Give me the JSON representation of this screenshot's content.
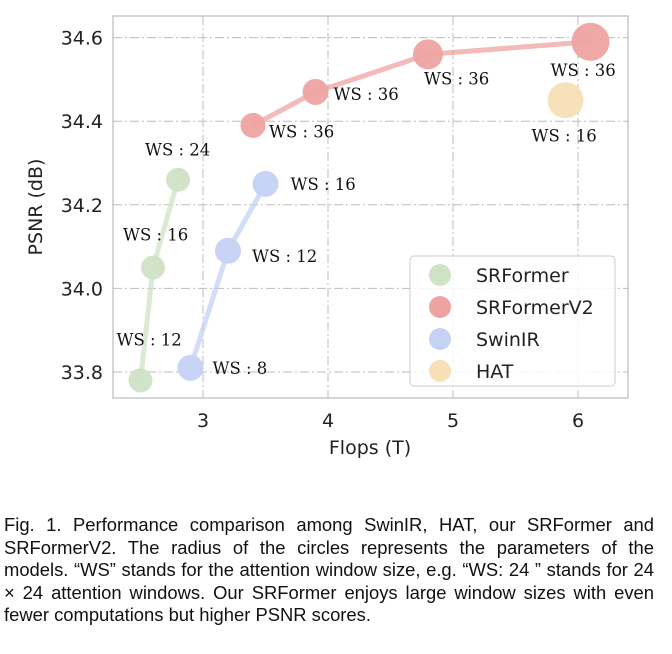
{
  "chart_data": {
    "type": "scatter",
    "xlabel": "Flops (T)",
    "ylabel": "PSNR (dB)",
    "xlim": [
      2.3,
      6.4
    ],
    "ylim": [
      33.74,
      34.65
    ],
    "xticks": [
      3,
      4,
      5,
      6
    ],
    "yticks": [
      33.8,
      34.0,
      34.2,
      34.4,
      34.6
    ],
    "grid": true,
    "legend_position": "bottom-right",
    "series": [
      {
        "name": "SRFormer",
        "color": "#cfe3c6",
        "connected": true,
        "points": [
          {
            "x": 2.5,
            "y": 33.78,
            "size": 12,
            "label": "WS : 12"
          },
          {
            "x": 2.6,
            "y": 34.05,
            "size": 12,
            "label": "WS : 16"
          },
          {
            "x": 2.8,
            "y": 34.26,
            "size": 12,
            "label": "WS : 24"
          }
        ]
      },
      {
        "name": "SRFormerV2",
        "color": "#eea3a1",
        "connected": true,
        "points": [
          {
            "x": 3.4,
            "y": 34.39,
            "size": 12.5,
            "label": "WS : 36"
          },
          {
            "x": 3.9,
            "y": 34.47,
            "size": 13,
            "label": "WS : 36"
          },
          {
            "x": 4.8,
            "y": 34.56,
            "size": 15,
            "label": "WS : 36"
          },
          {
            "x": 6.1,
            "y": 34.59,
            "size": 19,
            "label": "WS : 36"
          }
        ]
      },
      {
        "name": "SwinIR",
        "color": "#c5d2f4",
        "connected": true,
        "points": [
          {
            "x": 2.9,
            "y": 33.81,
            "size": 13,
            "label": "WS : 8"
          },
          {
            "x": 3.2,
            "y": 34.09,
            "size": 13,
            "label": "WS : 12"
          },
          {
            "x": 3.5,
            "y": 34.25,
            "size": 13,
            "label": "WS : 16"
          }
        ]
      },
      {
        "name": "HAT",
        "color": "#f7dfb6",
        "connected": false,
        "points": [
          {
            "x": 5.9,
            "y": 34.45,
            "size": 18,
            "label": "WS : 16"
          }
        ]
      }
    ]
  },
  "caption": "Fig. 1. Performance comparison among SwinIR, HAT, our SRFormer and SRFormerV2. The radius of the circles represents the parameters of the models. “WS” stands for the attention window size, e.g. “WS: 24 ” stands for 24 × 24 attention windows. Our SRFormer enjoys large window sizes with even fewer computations but higher PSNR scores."
}
